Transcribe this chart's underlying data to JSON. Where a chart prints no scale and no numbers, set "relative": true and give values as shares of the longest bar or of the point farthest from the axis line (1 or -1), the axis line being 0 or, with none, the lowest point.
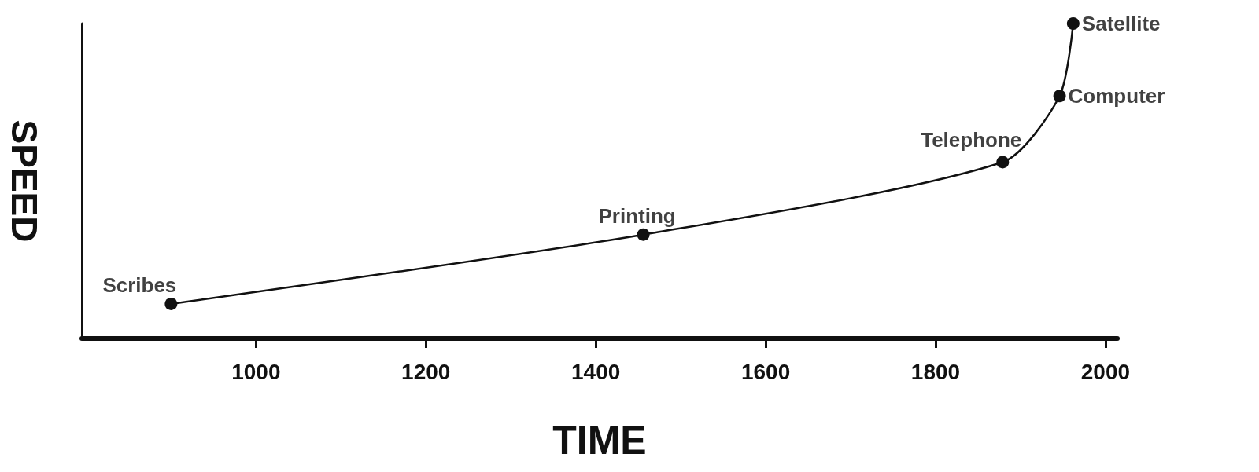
{
  "chart_data": {
    "type": "line",
    "xlabel": "TIME",
    "ylabel": "SPEED",
    "relative": true,
    "x": [
      900,
      1456,
      1879,
      1946,
      1962
    ],
    "values": [
      0.11,
      0.33,
      0.56,
      0.77,
      1
    ],
    "color": "#111111",
    "marker": "circle",
    "line_style": "solid",
    "grid": false,
    "xlim": [
      795,
      2014
    ],
    "xticks": [
      1000,
      1200,
      1400,
      1600,
      1800,
      2000
    ],
    "annotations": [
      {
        "text": "Scribes",
        "x": 900,
        "y": 0.11
      },
      {
        "text": "Printing",
        "x": 1456,
        "y": 0.33
      },
      {
        "text": "Telephone",
        "x": 1879,
        "y": 0.56
      },
      {
        "text": "Computer",
        "x": 1946,
        "y": 0.77
      },
      {
        "text": "Satellite",
        "x": 1962,
        "y": 1
      }
    ]
  }
}
